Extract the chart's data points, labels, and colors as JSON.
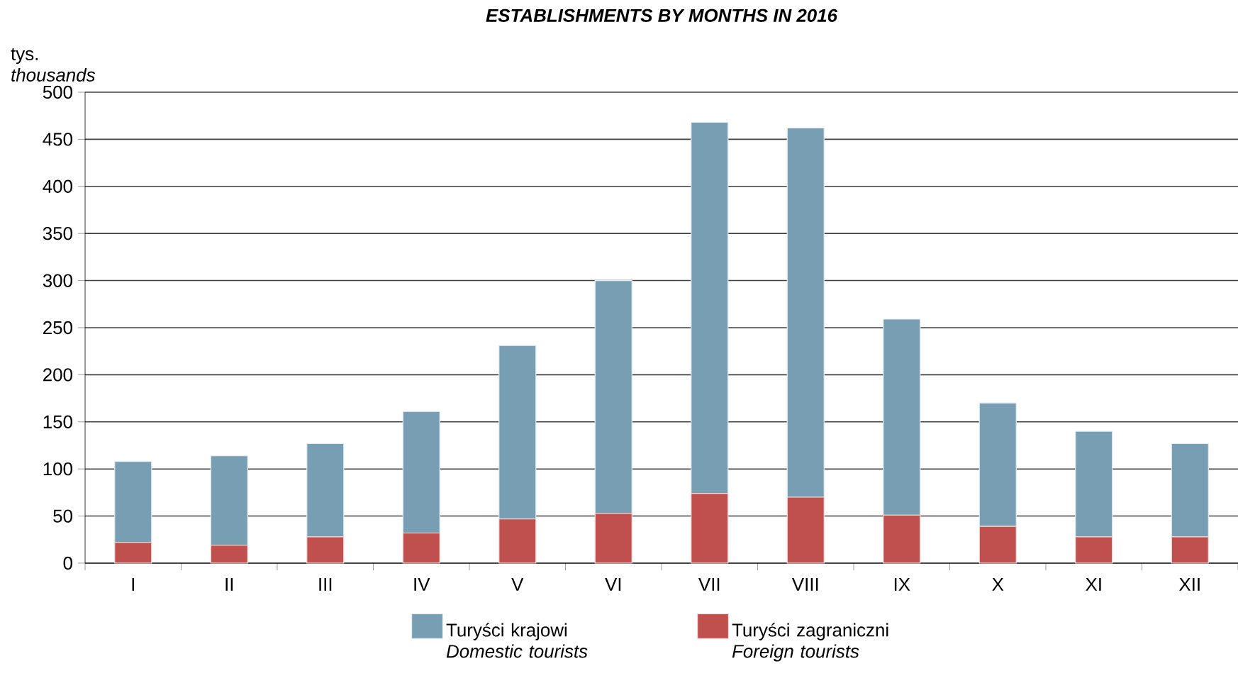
{
  "chart_data": {
    "type": "bar",
    "stacked": true,
    "title": "ESTABLISHMENTS  BY  MONTHS  IN  2016",
    "ylabel": "tys. *thousands*",
    "categories": [
      "I",
      "II",
      "III",
      "IV",
      "V",
      "VI",
      "VII",
      "VIII",
      "IX",
      "X",
      "XI",
      "XII"
    ],
    "series": [
      {
        "name": "Turyści zagraniczni *Foreign tourists*",
        "color": "#c0504d",
        "values": [
          22,
          19,
          28,
          32,
          47,
          53,
          74,
          70,
          51,
          39,
          28,
          28
        ]
      },
      {
        "name": "Turyści krajowi *Domestic tourists*",
        "color": "#779eb2",
        "values": [
          86,
          95,
          99,
          129,
          184,
          247,
          394,
          392,
          208,
          131,
          112,
          99
        ]
      }
    ],
    "ylim": [
      0,
      500
    ],
    "yticks": [
      0,
      50,
      100,
      150,
      200,
      250,
      300,
      350,
      400,
      450,
      500
    ],
    "grid": "y",
    "legend": "bottom"
  }
}
